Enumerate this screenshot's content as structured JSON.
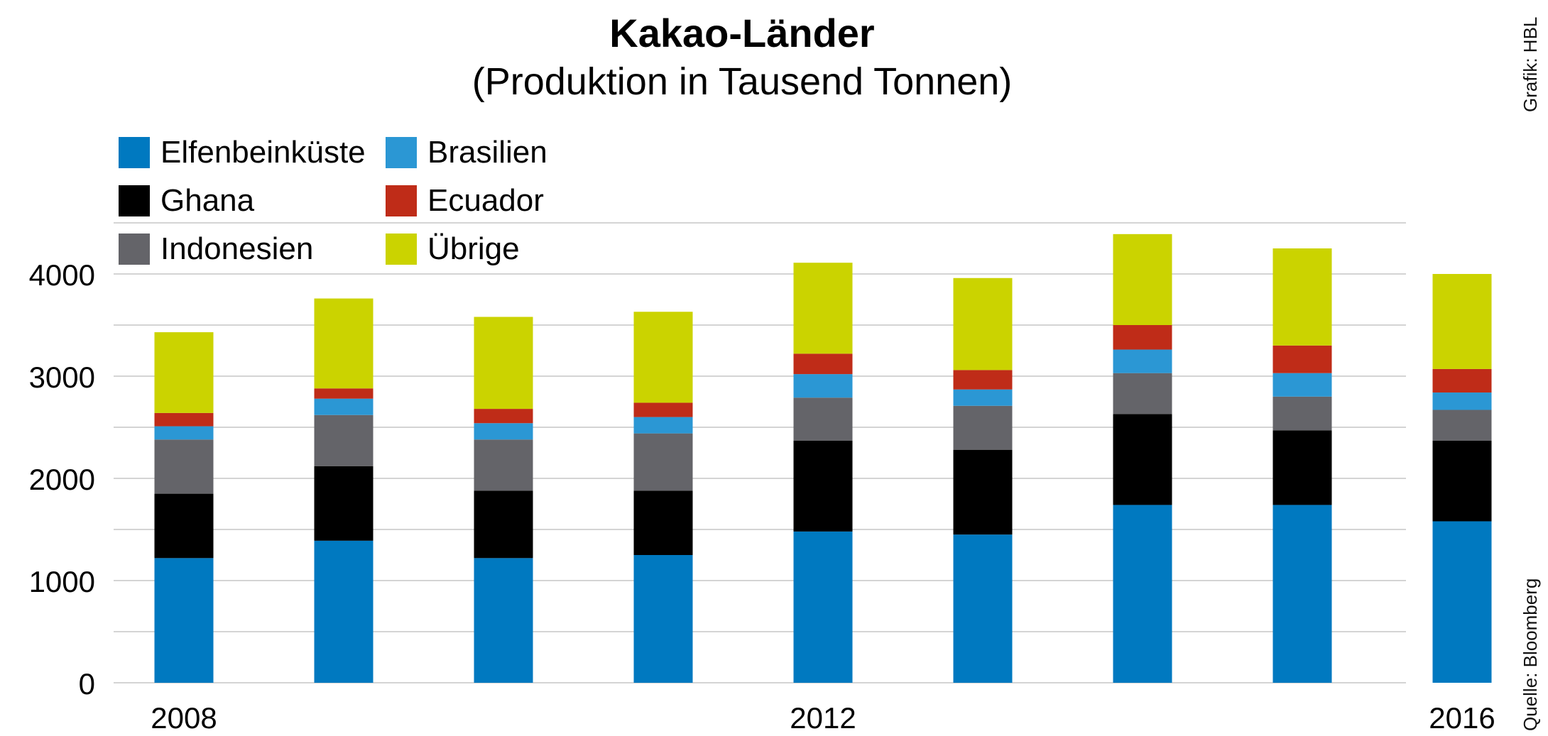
{
  "title": "Kakao-Länder",
  "subtitle": "(Produktion in Tausend Tonnen)",
  "credit": "Grafik: HBL",
  "source": "Quelle: Bloomberg",
  "chart_data": {
    "type": "bar",
    "stacked": true,
    "categories": [
      "2008",
      "2009",
      "2010",
      "2011",
      "2012",
      "2013",
      "2014",
      "2015",
      "2016"
    ],
    "x_tick_labels": [
      "2008",
      "",
      "",
      "",
      "2012",
      "",
      "",
      "",
      "2016"
    ],
    "y_ticks": [
      "0",
      "1000",
      "2000",
      "3000",
      "4000"
    ],
    "ylim": [
      0,
      4500
    ],
    "grid": true,
    "legend_position": "top-left",
    "series": [
      {
        "name": "Elfenbeinküste",
        "color": "#0079c0",
        "values": [
          1220,
          1390,
          1220,
          1250,
          1480,
          1450,
          1740,
          1740,
          1580
        ]
      },
      {
        "name": "Ghana",
        "color": "#000000",
        "values": [
          630,
          730,
          660,
          630,
          890,
          830,
          890,
          730,
          790
        ]
      },
      {
        "name": "Indonesien",
        "color": "#646469",
        "values": [
          530,
          500,
          500,
          560,
          420,
          430,
          400,
          330,
          300
        ]
      },
      {
        "name": "Brasilien",
        "color": "#2b97d4",
        "values": [
          130,
          160,
          160,
          160,
          230,
          160,
          230,
          230,
          170
        ]
      },
      {
        "name": "Ecuador",
        "color": "#bf2c18",
        "values": [
          130,
          100,
          140,
          140,
          200,
          190,
          240,
          270,
          230
        ]
      },
      {
        "name": "Übrige",
        "color": "#cbd300",
        "values": [
          790,
          880,
          900,
          890,
          890,
          900,
          890,
          950,
          930
        ]
      }
    ]
  }
}
